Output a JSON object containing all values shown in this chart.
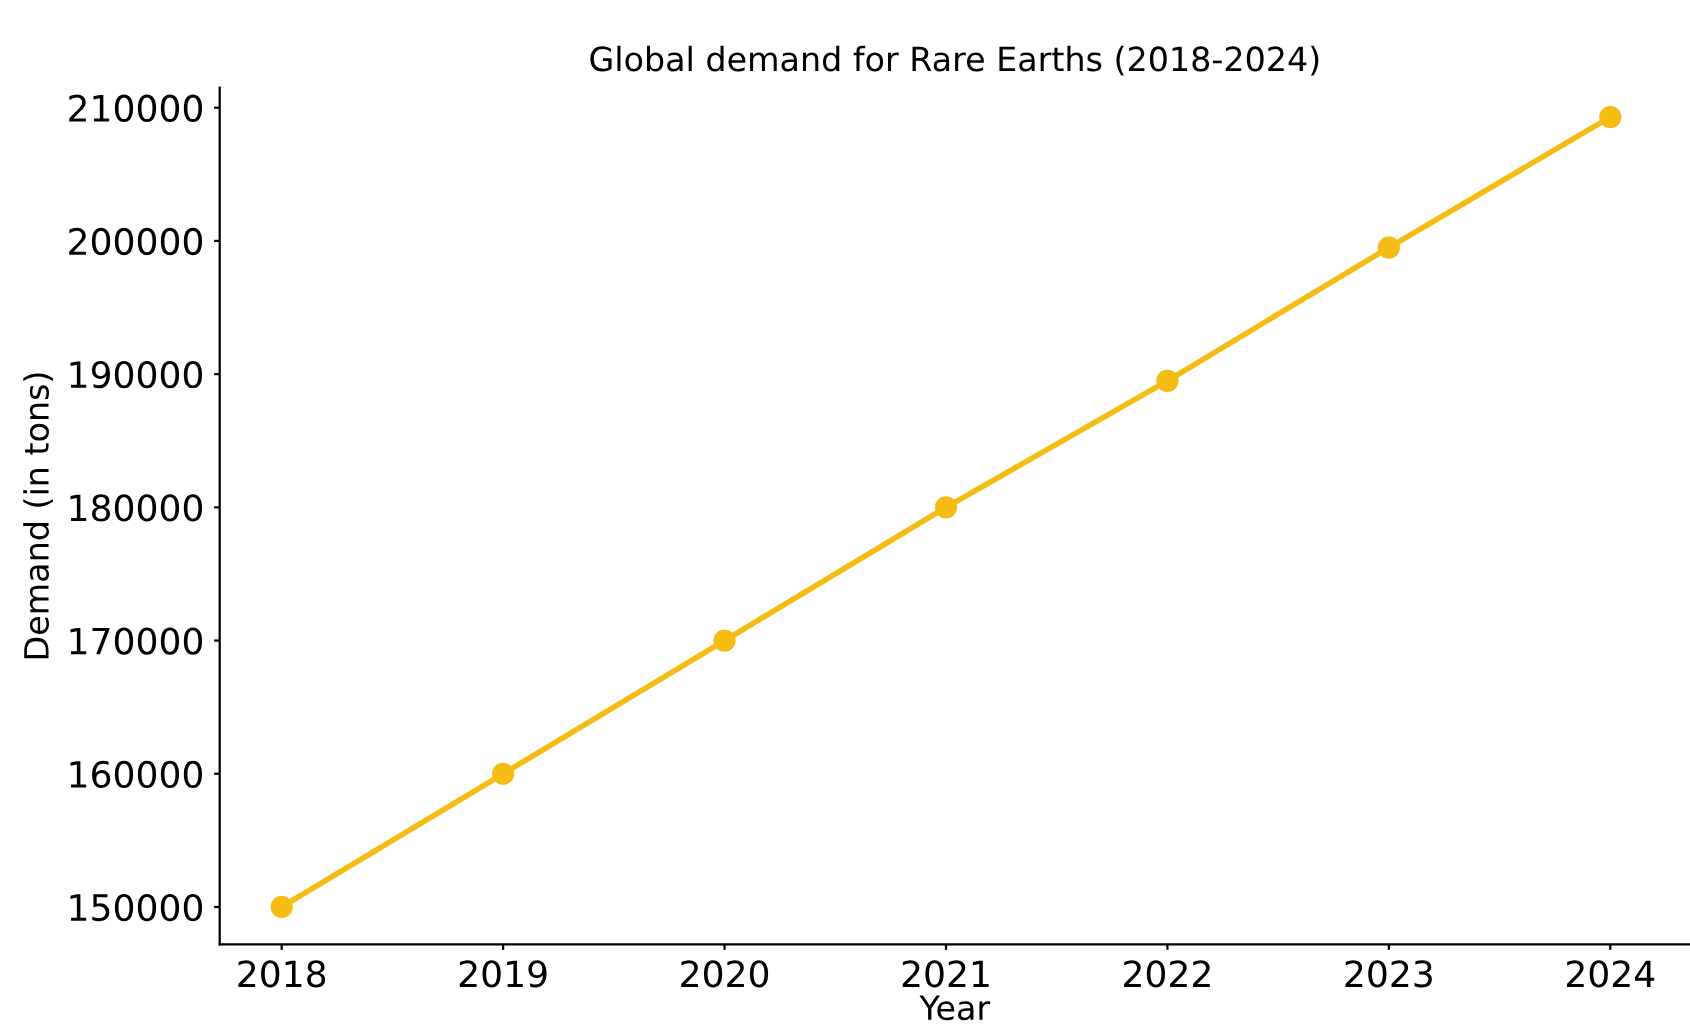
{
  "chart_data": {
    "type": "line",
    "title": "Global demand for Rare Earths (2018-2024)",
    "xlabel": "Year",
    "ylabel": "Demand (in tons)",
    "categories": [
      "2018",
      "2019",
      "2020",
      "2021",
      "2022",
      "2023",
      "2024"
    ],
    "series": [
      {
        "color": "#f5bd14",
        "values": [
          150000,
          160000,
          170000,
          180000,
          189500,
          199500,
          209300
        ]
      }
    ],
    "ylim": [
      147200,
      211500
    ],
    "yticks": [
      150000,
      160000,
      170000,
      180000,
      190000,
      200000,
      210000
    ],
    "marker": "circle",
    "line_style": "solid",
    "grid": false,
    "legend": false
  }
}
